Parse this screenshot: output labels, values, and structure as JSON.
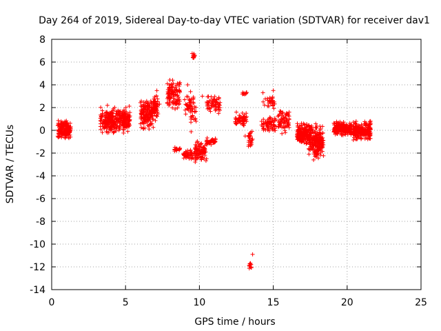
{
  "chart_data": {
    "type": "scatter",
    "title": "Day 264 of 2019, Sidereal Day-to-day VTEC variation (SDTVAR) for receiver dav1",
    "xlabel": "GPS time / hours",
    "ylabel": "SDTVAR / TECUs",
    "xlim": [
      0,
      25
    ],
    "ylim": [
      -14,
      8
    ],
    "xticks": [
      0,
      5,
      10,
      15,
      20,
      25
    ],
    "xtick_labels": [
      "0",
      "5",
      "10",
      "15",
      "20",
      "25"
    ],
    "yticks": [
      8,
      6,
      4,
      2,
      0,
      -2,
      -4,
      -6,
      -8,
      -10,
      -12,
      -14
    ],
    "ytick_labels": [
      "8",
      "6",
      "4",
      "2",
      "0",
      "-2",
      "-4",
      "-6",
      "-8",
      "-10",
      "-12",
      "-14"
    ],
    "grid": true,
    "marker": "+",
    "series": [
      {
        "name": "SDTVAR",
        "color": "#ff0000",
        "clusters": [
          {
            "x": [
              0.4,
              1.3
            ],
            "y": [
              -1.0,
              1.1
            ],
            "n": 160
          },
          {
            "x": [
              3.3,
              5.3
            ],
            "y": [
              -0.5,
              2.3
            ],
            "n": 320
          },
          {
            "x": [
              6.0,
              6.9
            ],
            "y": [
              -0.3,
              3.1
            ],
            "n": 160
          },
          {
            "x": [
              6.9,
              7.2
            ],
            "y": [
              0.5,
              3.6
            ],
            "n": 50
          },
          {
            "x": [
              7.8,
              8.7
            ],
            "y": [
              1.5,
              4.8
            ],
            "n": 110
          },
          {
            "x": [
              8.3,
              8.7
            ],
            "y": [
              -1.9,
              -1.4
            ],
            "n": 20
          },
          {
            "x": [
              8.9,
              9.8
            ],
            "y": [
              -2.7,
              -1.6
            ],
            "n": 45
          },
          {
            "x": [
              9.0,
              9.6
            ],
            "y": [
              1.0,
              3.2
            ],
            "n": 30
          },
          {
            "x": [
              9.5,
              9.7
            ],
            "y": [
              6.2,
              7.0
            ],
            "n": 15
          },
          {
            "x": [
              9.4,
              9.8
            ],
            "y": [
              -0.8,
              3.6
            ],
            "n": 25
          },
          {
            "x": [
              9.7,
              10.5
            ],
            "y": [
              -3.0,
              -0.6
            ],
            "n": 90
          },
          {
            "x": [
              10.4,
              11.1
            ],
            "y": [
              -1.4,
              -0.6
            ],
            "n": 40
          },
          {
            "x": [
              10.5,
              11.4
            ],
            "y": [
              1.0,
              3.6
            ],
            "n": 60
          },
          {
            "x": [
              12.4,
              13.2
            ],
            "y": [
              0.0,
              1.8
            ],
            "n": 55
          },
          {
            "x": [
              12.9,
              13.2
            ],
            "y": [
              2.9,
              3.5
            ],
            "n": 10
          },
          {
            "x": [
              13.3,
              13.6
            ],
            "y": [
              -1.6,
              0.2
            ],
            "n": 25
          },
          {
            "x": [
              13.35,
              13.55
            ],
            "y": [
              -12.3,
              -11.5
            ],
            "n": 10
          },
          {
            "x": [
              14.2,
              15.2
            ],
            "y": [
              -0.4,
              1.6
            ],
            "n": 70
          },
          {
            "x": [
              14.3,
              15.1
            ],
            "y": [
              1.4,
              3.4
            ],
            "n": 25
          },
          {
            "x": [
              15.3,
              16.1
            ],
            "y": [
              -0.6,
              2.2
            ],
            "n": 70
          },
          {
            "x": [
              16.6,
              17.6
            ],
            "y": [
              -1.4,
              0.8
            ],
            "n": 190
          },
          {
            "x": [
              17.4,
              18.4
            ],
            "y": [
              -2.9,
              0.9
            ],
            "n": 200
          },
          {
            "x": [
              19.1,
              20.3
            ],
            "y": [
              -0.6,
              0.9
            ],
            "n": 220
          },
          {
            "x": [
              20.4,
              21.6
            ],
            "y": [
              -1.0,
              1.0
            ],
            "n": 220
          }
        ],
        "points": [
          [
            12.5,
            1.6
          ],
          [
            13.6,
            -10.9
          ],
          [
            13.5,
            -11.8
          ],
          [
            14.3,
            3.3
          ],
          [
            15.0,
            3.5
          ],
          [
            14.7,
            2.4
          ],
          [
            9.2,
            4.0
          ],
          [
            9.4,
            3.4
          ],
          [
            10.2,
            3.0
          ],
          [
            13.1,
            -0.5
          ],
          [
            9.0,
            2.7
          ],
          [
            7.3,
            2.3
          ]
        ]
      }
    ]
  }
}
